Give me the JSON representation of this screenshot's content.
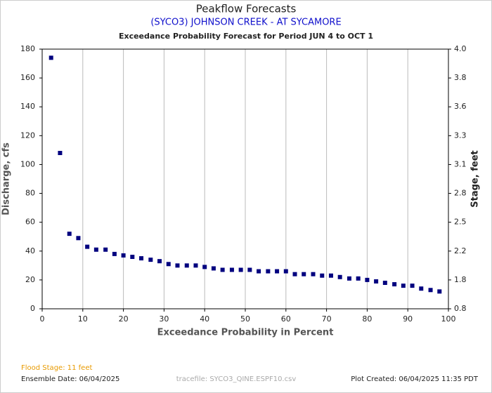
{
  "chart_data": {
    "type": "scatter",
    "title": "Peakflow Forecasts",
    "subtitle": "(SYCO3) JOHNSON CREEK - AT SYCAMORE",
    "subtitle2": "Exceedance Probability Forecast for Period JUN 4 to OCT 1",
    "xlabel": "Exceedance Probability in Percent",
    "ylabel": "Discharge, cfs",
    "y2label": "Stage, feet",
    "xlim": [
      0,
      100
    ],
    "xticks": [
      0,
      10,
      20,
      30,
      40,
      50,
      60,
      70,
      80,
      90,
      100
    ],
    "ylim": [
      0,
      180
    ],
    "yticks": [
      0,
      20,
      40,
      60,
      80,
      100,
      120,
      140,
      160,
      180
    ],
    "y2lim": [
      0.8,
      4.0
    ],
    "y2ticks": [
      0.8,
      1.8,
      2.2,
      2.5,
      2.8,
      3.1,
      3.3,
      3.6,
      3.8,
      {
        "value": 4,
        "label": "4.0"
      }
    ],
    "grid": "x",
    "color": "#00007f",
    "x": [
      2.2,
      4.4,
      6.7,
      8.9,
      11.1,
      13.3,
      15.6,
      17.8,
      20.0,
      22.2,
      24.4,
      26.7,
      28.9,
      31.1,
      33.3,
      35.6,
      37.8,
      40.0,
      42.2,
      44.4,
      46.7,
      48.9,
      51.1,
      53.3,
      55.6,
      57.8,
      60.0,
      62.2,
      64.4,
      66.7,
      68.9,
      71.1,
      73.3,
      75.6,
      77.8,
      80.0,
      82.2,
      84.4,
      86.7,
      88.9,
      91.1,
      93.3,
      95.6,
      97.8
    ],
    "values": [
      174,
      108,
      52,
      49,
      43,
      41,
      41,
      38,
      37,
      36,
      35,
      34,
      33,
      31,
      30,
      30,
      30,
      29,
      28,
      27,
      27,
      27,
      27,
      26,
      26,
      26,
      26,
      24,
      24,
      24,
      23,
      23,
      22,
      21,
      21,
      20,
      19,
      18,
      17,
      16,
      16,
      14,
      13,
      12
    ],
    "footer": {
      "flood_stage": "Flood Stage: 11 feet",
      "ensemble_date": "Ensemble Date: 06/04/2025",
      "tracefile": "tracefile: SYCO3_QINE.ESPF10.csv",
      "plot_created": "Plot Created: 06/04/2025 11:35 PDT"
    }
  }
}
